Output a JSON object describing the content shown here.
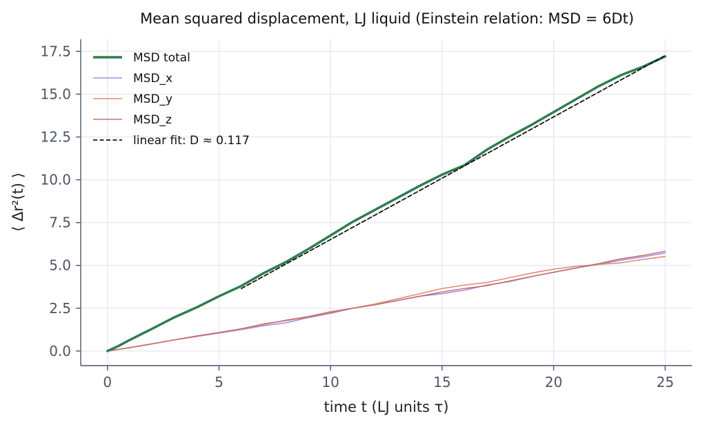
{
  "chart_data": {
    "type": "line",
    "title": "Mean squared displacement, LJ liquid (Einstein relation: MSD = 6Dt)",
    "xlabel": "time t  (LJ units τ)",
    "ylabel": "⟨ Δr²(t) ⟩",
    "xlim": [
      -1.2,
      26.2
    ],
    "ylim": [
      -0.85,
      18.2
    ],
    "xticks": [
      0,
      5,
      10,
      15,
      20,
      25
    ],
    "xtick_labels": [
      "0",
      "5",
      "10",
      "15",
      "20",
      "25"
    ],
    "yticks": [
      0.0,
      2.5,
      5.0,
      7.5,
      10.0,
      12.5,
      15.0,
      17.5
    ],
    "ytick_labels": [
      "0.0",
      "2.5",
      "5.0",
      "7.5",
      "10.0",
      "12.5",
      "15.0",
      "17.5"
    ],
    "grid": true,
    "legend_position": "top-left",
    "series": [
      {
        "name": "MSD total",
        "color": "#2e7d4f",
        "style": "solid-thick",
        "x": [
          0,
          0.5,
          1,
          2,
          3,
          4,
          5,
          6,
          7,
          8,
          9,
          10,
          11,
          12,
          13,
          14,
          15,
          16,
          17,
          18,
          19,
          20,
          21,
          22,
          23,
          24,
          25
        ],
        "y": [
          0,
          0.3,
          0.65,
          1.3,
          1.97,
          2.55,
          3.2,
          3.8,
          4.55,
          5.2,
          5.95,
          6.75,
          7.55,
          8.25,
          8.95,
          9.65,
          10.3,
          10.85,
          11.75,
          12.5,
          13.2,
          13.95,
          14.7,
          15.45,
          16.1,
          16.6,
          17.2
        ]
      },
      {
        "name": "MSD_x",
        "color": "#a98ee0",
        "style": "solid",
        "x": [
          0,
          1,
          2,
          3,
          4,
          5,
          6,
          7,
          8,
          9,
          10,
          11,
          12,
          13,
          14,
          15,
          16,
          17,
          18,
          19,
          20,
          21,
          22,
          23,
          24,
          25
        ],
        "y": [
          0,
          0.2,
          0.42,
          0.65,
          0.85,
          1.05,
          1.25,
          1.48,
          1.65,
          1.95,
          2.2,
          2.5,
          2.72,
          2.95,
          3.2,
          3.35,
          3.55,
          3.85,
          4.05,
          4.35,
          4.6,
          4.85,
          5.05,
          5.3,
          5.5,
          5.72
        ]
      },
      {
        "name": "MSD_y",
        "color": "#dd8e74",
        "style": "solid",
        "x": [
          0,
          1,
          2,
          3,
          4,
          5,
          6,
          7,
          8,
          9,
          10,
          11,
          12,
          13,
          14,
          15,
          16,
          17,
          18,
          19,
          20,
          21,
          22,
          23,
          24,
          25
        ],
        "y": [
          0,
          0.2,
          0.42,
          0.65,
          0.88,
          1.08,
          1.3,
          1.55,
          1.8,
          2.02,
          2.3,
          2.5,
          2.75,
          3.05,
          3.35,
          3.65,
          3.85,
          4.0,
          4.28,
          4.55,
          4.78,
          4.95,
          5.05,
          5.15,
          5.35,
          5.52
        ]
      },
      {
        "name": "MSD_z",
        "color": "#c27070",
        "style": "solid",
        "x": [
          0,
          1,
          2,
          3,
          4,
          5,
          6,
          7,
          8,
          9,
          10,
          11,
          12,
          13,
          14,
          15,
          16,
          17,
          18,
          19,
          20,
          21,
          22,
          23,
          24,
          25
        ],
        "y": [
          0,
          0.2,
          0.42,
          0.65,
          0.88,
          1.08,
          1.3,
          1.58,
          1.78,
          1.98,
          2.25,
          2.5,
          2.7,
          2.95,
          3.2,
          3.45,
          3.65,
          3.82,
          4.08,
          4.35,
          4.6,
          4.85,
          5.1,
          5.38,
          5.58,
          5.82
        ]
      },
      {
        "name": "linear fit:  D ≈ 0.117",
        "color": "#111111",
        "style": "dashed",
        "x": [
          6,
          25
        ],
        "y": [
          3.65,
          17.25
        ]
      }
    ]
  }
}
